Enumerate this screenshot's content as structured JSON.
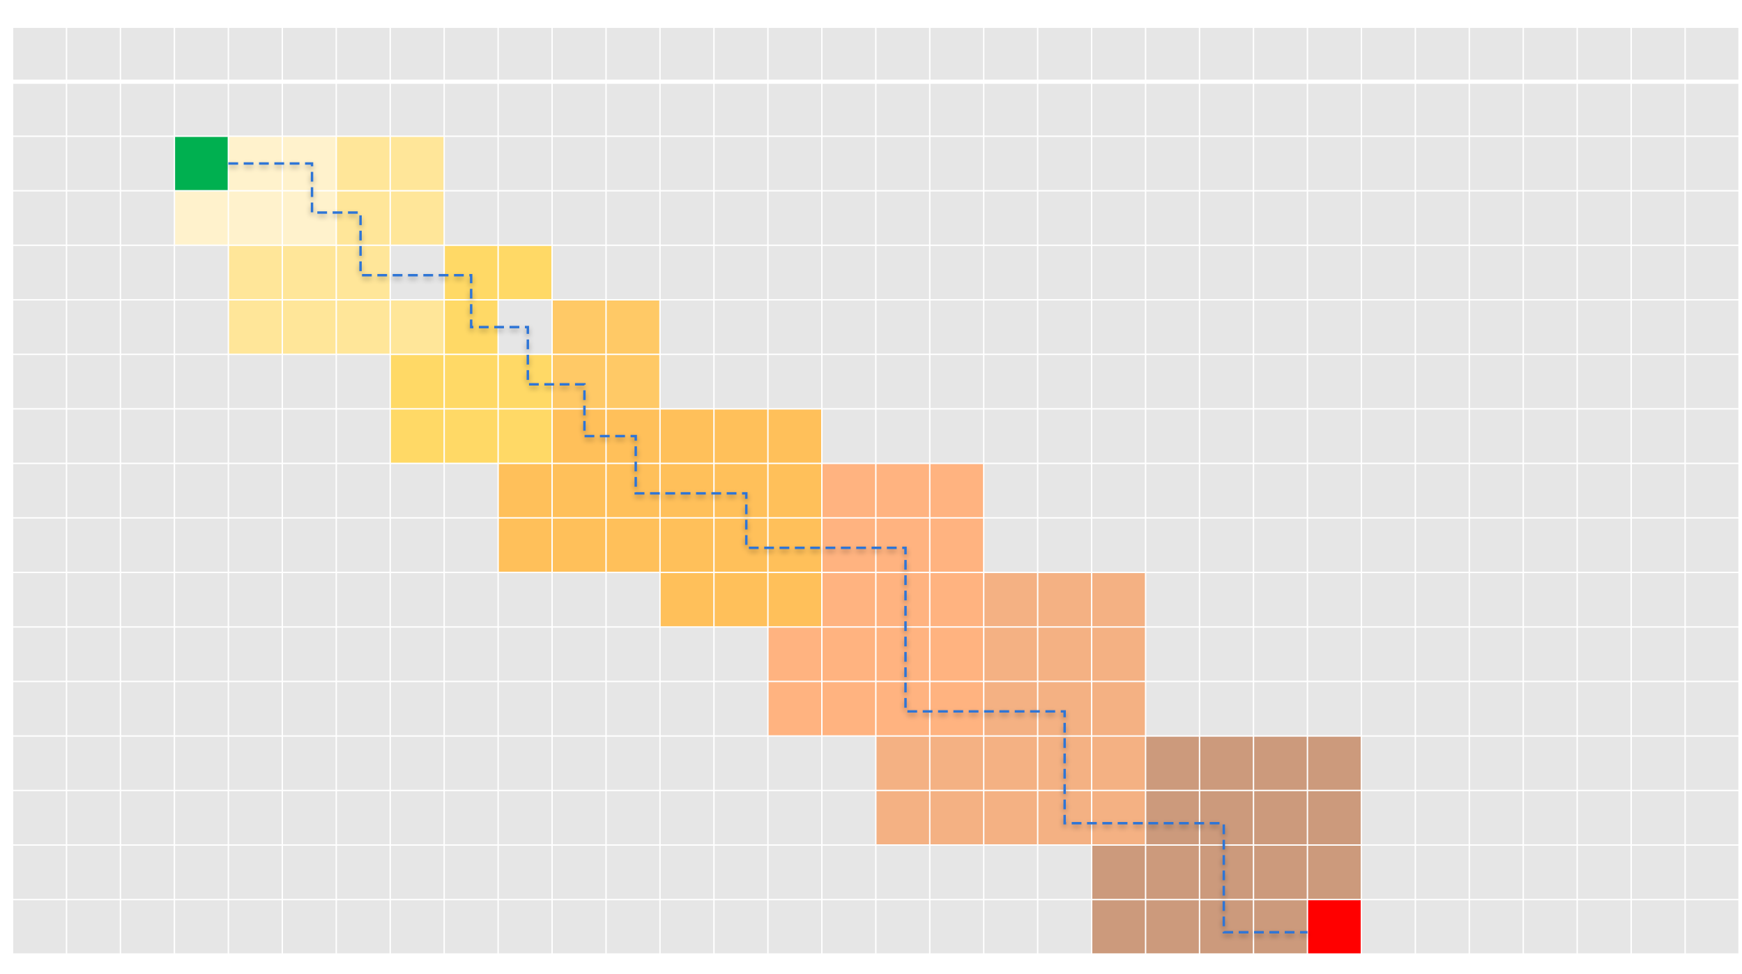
{
  "grid": {
    "columns": 32,
    "rows": 17,
    "background_color": "#e6e6e6",
    "line_color": "#ffffff"
  },
  "start_cell": {
    "col": 3,
    "row": 2,
    "color": "#00b050"
  },
  "goal_cell": {
    "col": 24,
    "row": 16,
    "color": "#ff0000"
  },
  "search_regions": [
    {
      "color": "#fff2cc",
      "cells": [
        [
          4,
          2
        ],
        [
          5,
          2
        ],
        [
          3,
          3
        ],
        [
          4,
          3
        ],
        [
          5,
          3
        ]
      ]
    },
    {
      "color": "#ffe699",
      "cells": [
        [
          6,
          2
        ],
        [
          7,
          2
        ],
        [
          6,
          3
        ],
        [
          7,
          3
        ],
        [
          4,
          4
        ],
        [
          5,
          4
        ],
        [
          6,
          4
        ],
        [
          4,
          5
        ],
        [
          5,
          5
        ],
        [
          6,
          5
        ],
        [
          7,
          5
        ]
      ]
    },
    {
      "color": "#ffd966",
      "cells": [
        [
          8,
          4
        ],
        [
          9,
          4
        ],
        [
          8,
          5
        ],
        [
          7,
          6
        ],
        [
          8,
          6
        ],
        [
          9,
          6
        ],
        [
          7,
          7
        ],
        [
          8,
          7
        ],
        [
          9,
          7
        ]
      ]
    },
    {
      "color": "#ffc966",
      "cells": [
        [
          10,
          5
        ],
        [
          11,
          5
        ],
        [
          10,
          6
        ],
        [
          11,
          6
        ]
      ]
    },
    {
      "color": "#ffc05a",
      "cells": [
        [
          10,
          7
        ],
        [
          11,
          7
        ],
        [
          12,
          7
        ],
        [
          13,
          7
        ],
        [
          14,
          7
        ],
        [
          9,
          8
        ],
        [
          10,
          8
        ],
        [
          11,
          8
        ],
        [
          12,
          8
        ],
        [
          13,
          8
        ],
        [
          14,
          8
        ],
        [
          9,
          9
        ],
        [
          10,
          9
        ],
        [
          11,
          9
        ],
        [
          12,
          9
        ],
        [
          13,
          9
        ],
        [
          14,
          9
        ],
        [
          12,
          10
        ],
        [
          13,
          10
        ],
        [
          14,
          10
        ]
      ]
    },
    {
      "color": "#ffb380",
      "cells": [
        [
          15,
          8
        ],
        [
          16,
          8
        ],
        [
          17,
          8
        ],
        [
          15,
          9
        ],
        [
          16,
          9
        ],
        [
          17,
          9
        ],
        [
          15,
          10
        ],
        [
          16,
          10
        ],
        [
          17,
          10
        ],
        [
          14,
          11
        ],
        [
          15,
          11
        ],
        [
          16,
          11
        ],
        [
          17,
          11
        ],
        [
          14,
          12
        ],
        [
          15,
          12
        ],
        [
          16,
          12
        ],
        [
          17,
          12
        ]
      ]
    },
    {
      "color": "#f4b183",
      "cells": [
        [
          18,
          10
        ],
        [
          19,
          10
        ],
        [
          20,
          10
        ],
        [
          18,
          11
        ],
        [
          19,
          11
        ],
        [
          20,
          11
        ],
        [
          18,
          12
        ],
        [
          19,
          12
        ],
        [
          20,
          12
        ],
        [
          16,
          13
        ],
        [
          17,
          13
        ],
        [
          18,
          13
        ],
        [
          19,
          13
        ],
        [
          20,
          13
        ],
        [
          16,
          14
        ],
        [
          17,
          14
        ],
        [
          18,
          14
        ],
        [
          19,
          14
        ],
        [
          20,
          14
        ]
      ]
    },
    {
      "color": "#cc9a7c",
      "cells": [
        [
          21,
          13
        ],
        [
          22,
          13
        ],
        [
          23,
          13
        ],
        [
          24,
          13
        ],
        [
          21,
          14
        ],
        [
          22,
          14
        ],
        [
          23,
          14
        ],
        [
          24,
          14
        ],
        [
          20,
          15
        ],
        [
          21,
          15
        ],
        [
          22,
          15
        ],
        [
          23,
          15
        ],
        [
          24,
          15
        ],
        [
          20,
          16
        ],
        [
          21,
          16
        ],
        [
          22,
          16
        ],
        [
          23,
          16
        ]
      ]
    }
  ],
  "path": {
    "color": "#2e75d6",
    "style": "dashed",
    "points": [
      [
        4,
        2.5
      ],
      [
        5.55,
        2.5
      ],
      [
        5.55,
        3.4
      ],
      [
        6.45,
        3.4
      ],
      [
        6.45,
        4.55
      ],
      [
        8.5,
        4.55
      ],
      [
        8.5,
        5.5
      ],
      [
        9.55,
        5.5
      ],
      [
        9.55,
        6.55
      ],
      [
        10.6,
        6.55
      ],
      [
        10.6,
        7.5
      ],
      [
        11.55,
        7.5
      ],
      [
        11.55,
        8.55
      ],
      [
        13.6,
        8.55
      ],
      [
        13.6,
        9.55
      ],
      [
        16.55,
        9.55
      ],
      [
        16.55,
        12.55
      ],
      [
        19.5,
        12.55
      ],
      [
        19.5,
        14.6
      ],
      [
        22.45,
        14.6
      ],
      [
        22.45,
        16.6
      ],
      [
        24,
        16.6
      ]
    ]
  }
}
